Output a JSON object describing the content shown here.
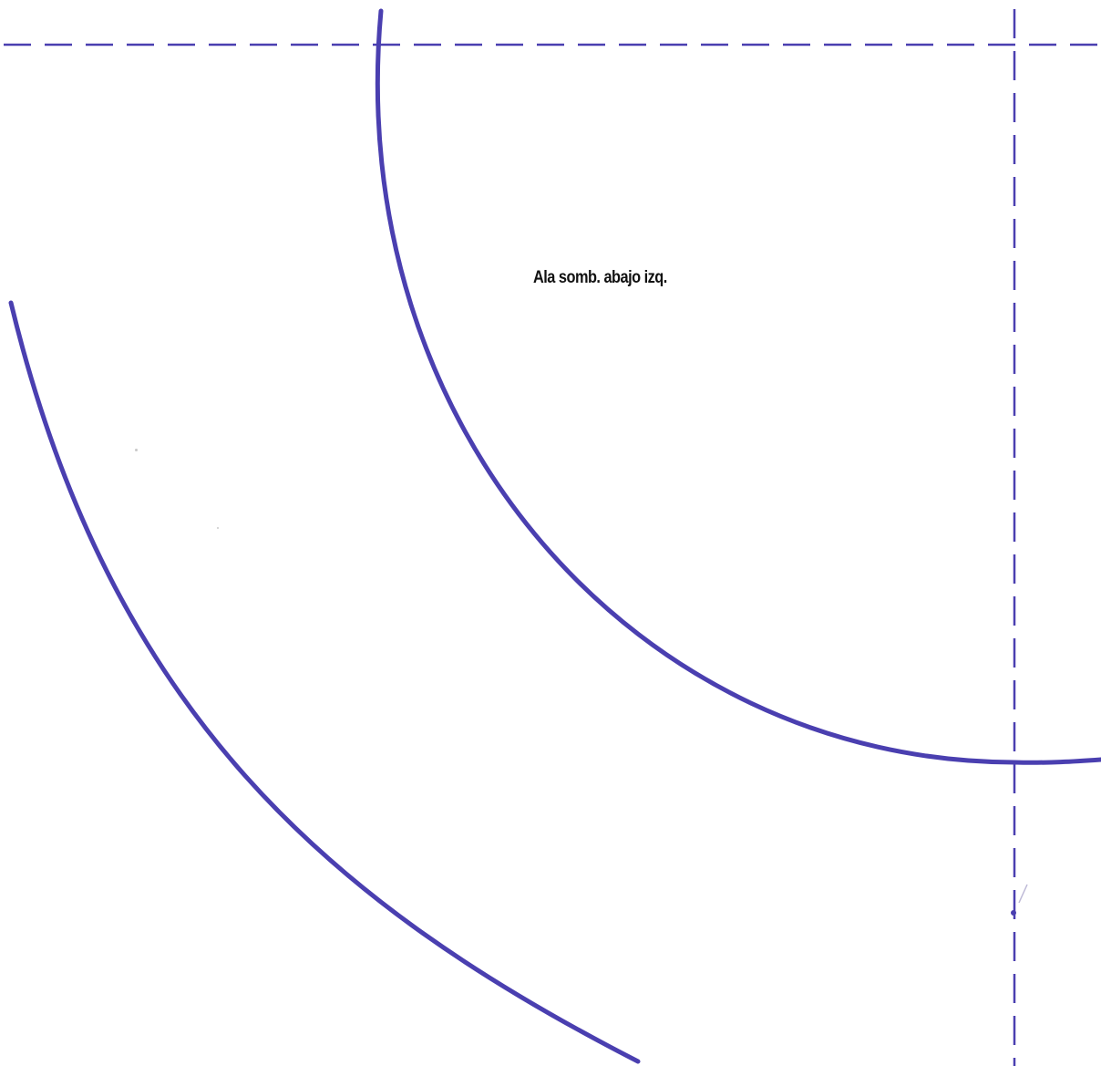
{
  "pattern": {
    "label": "Ala somb. abajo izq.",
    "line_color": "#4a3fb0",
    "text_color": "#111111",
    "background": "#ffffff"
  }
}
